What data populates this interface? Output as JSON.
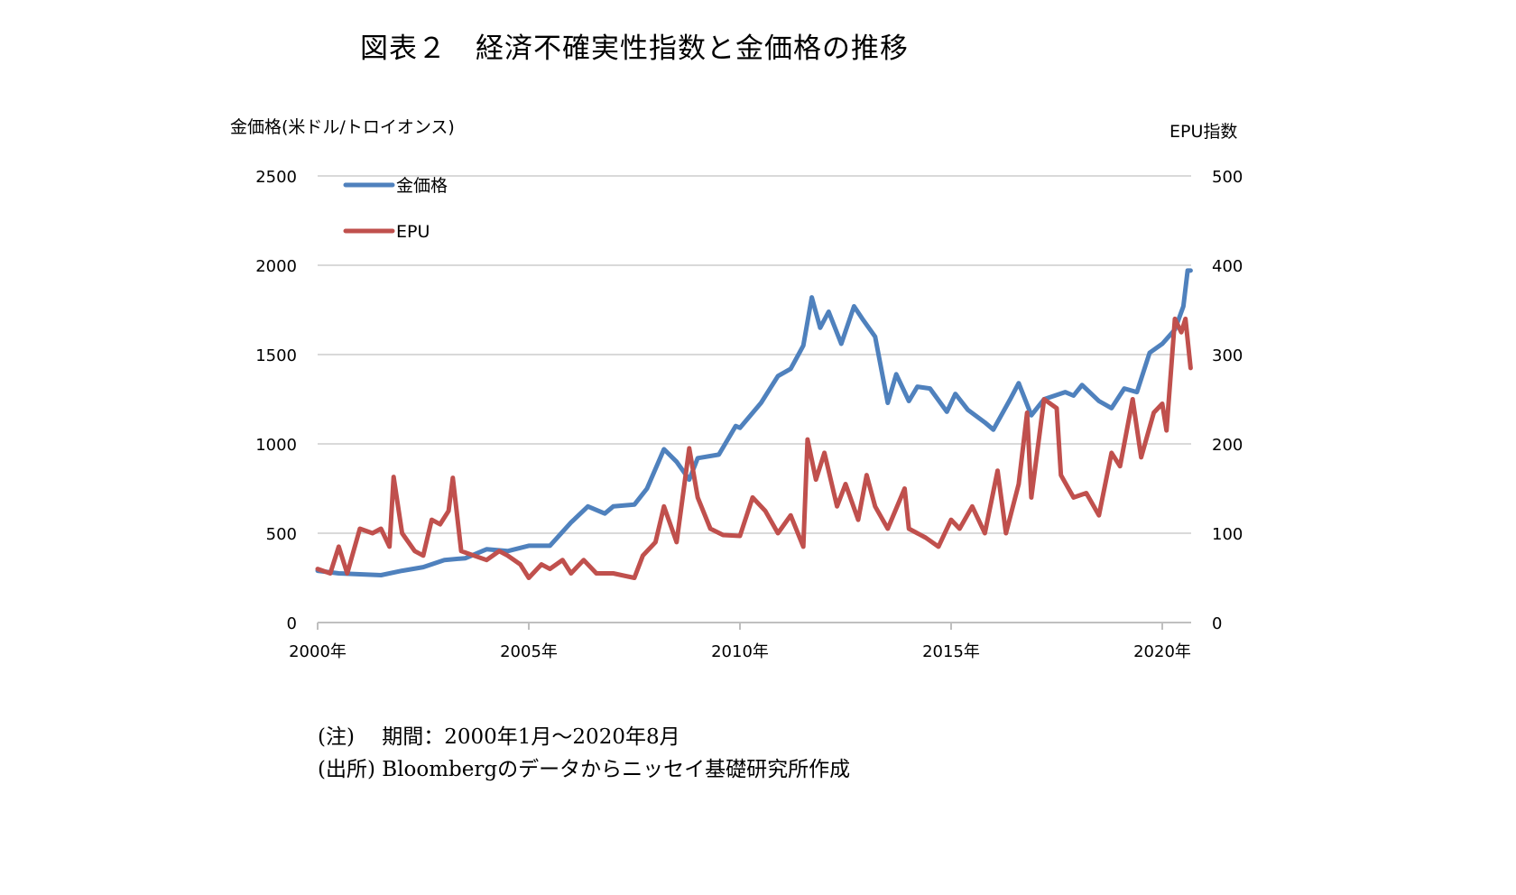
{
  "title": "図表２　経済不確実性指数と金価格の推移",
  "notes": {
    "period": "(注)　 期間：2000年1月～2020年8月",
    "source": "(出所) Bloombergのデータからニッセイ基礎研究所作成"
  },
  "chart_data": {
    "type": "line",
    "title": "図表２　経済不確実性指数と金価格の推移",
    "ylabel_left": "金価格(米ドル/トロイオンス)",
    "ylabel_right": "EPU指数",
    "ylim_left": [
      0,
      2500
    ],
    "ylim_right": [
      0,
      500
    ],
    "yticks_left": [
      "0",
      "500",
      "1000",
      "1500",
      "2000",
      "2500"
    ],
    "yticks_right": [
      "0",
      "100",
      "200",
      "300",
      "400",
      "500"
    ],
    "xlim": [
      2000,
      2020.67
    ],
    "xticks": [
      "2000年",
      "2005年",
      "2010年",
      "2015年",
      "2020年"
    ],
    "grid": true,
    "legend_position": "top-left",
    "series": [
      {
        "name": "金価格",
        "axis": "left",
        "color": "#4f81bd",
        "x": [
          2000.0,
          2000.5,
          2001,
          2001.5,
          2002,
          2002.5,
          2003,
          2003.5,
          2004,
          2004.5,
          2005,
          2005.5,
          2006,
          2006.4,
          2006.8,
          2007,
          2007.5,
          2007.8,
          2008.2,
          2008.5,
          2008.8,
          2009,
          2009.5,
          2009.9,
          2010,
          2010.5,
          2010.9,
          2011.2,
          2011.5,
          2011.7,
          2011.9,
          2012.1,
          2012.4,
          2012.7,
          2012.9,
          2013.2,
          2013.5,
          2013.7,
          2014,
          2014.2,
          2014.5,
          2014.9,
          2015.1,
          2015.4,
          2015.8,
          2016,
          2016.4,
          2016.6,
          2016.9,
          2017.2,
          2017.7,
          2017.9,
          2018.1,
          2018.5,
          2018.8,
          2019.1,
          2019.4,
          2019.7,
          2020,
          2020.3,
          2020.5,
          2020.6,
          2020.67
        ],
        "values": [
          290,
          275,
          270,
          265,
          290,
          310,
          350,
          360,
          410,
          400,
          430,
          430,
          560,
          650,
          610,
          650,
          660,
          750,
          970,
          900,
          800,
          920,
          940,
          1100,
          1090,
          1230,
          1380,
          1420,
          1550,
          1820,
          1650,
          1740,
          1560,
          1770,
          1700,
          1600,
          1230,
          1390,
          1240,
          1320,
          1310,
          1180,
          1280,
          1190,
          1120,
          1080,
          1250,
          1340,
          1160,
          1250,
          1290,
          1270,
          1330,
          1240,
          1200,
          1310,
          1290,
          1510,
          1560,
          1640,
          1770,
          1970,
          1970
        ]
      },
      {
        "name": "EPU",
        "axis": "right",
        "color": "#c0504d",
        "x": [
          2000.0,
          2000.3,
          2000.5,
          2000.7,
          2001,
          2001.3,
          2001.5,
          2001.7,
          2001.8,
          2002,
          2002.3,
          2002.5,
          2002.7,
          2002.9,
          2003.1,
          2003.2,
          2003.4,
          2003.7,
          2004,
          2004.3,
          2004.5,
          2004.8,
          2005,
          2005.3,
          2005.5,
          2005.8,
          2006,
          2006.3,
          2006.6,
          2007,
          2007.5,
          2007.7,
          2008,
          2008.2,
          2008.5,
          2008.8,
          2009,
          2009.3,
          2009.6,
          2010,
          2010.3,
          2010.6,
          2010.9,
          2011.2,
          2011.5,
          2011.6,
          2011.8,
          2012,
          2012.3,
          2012.5,
          2012.8,
          2013,
          2013.2,
          2013.5,
          2013.9,
          2014,
          2014.4,
          2014.7,
          2015,
          2015.2,
          2015.5,
          2015.8,
          2016.1,
          2016.3,
          2016.6,
          2016.8,
          2016.9,
          2017.2,
          2017.5,
          2017.6,
          2017.9,
          2018.2,
          2018.5,
          2018.8,
          2019,
          2019.3,
          2019.5,
          2019.8,
          2020,
          2020.1,
          2020.3,
          2020.45,
          2020.55,
          2020.67
        ],
        "values": [
          60,
          55,
          85,
          55,
          105,
          100,
          105,
          85,
          163,
          100,
          80,
          75,
          115,
          110,
          125,
          162,
          80,
          75,
          70,
          80,
          75,
          65,
          50,
          65,
          60,
          70,
          55,
          70,
          55,
          55,
          50,
          75,
          90,
          130,
          90,
          195,
          140,
          105,
          98,
          97,
          140,
          125,
          100,
          120,
          85,
          205,
          160,
          190,
          130,
          155,
          115,
          165,
          130,
          105,
          150,
          105,
          95,
          85,
          115,
          105,
          130,
          100,
          170,
          100,
          155,
          235,
          140,
          250,
          240,
          165,
          140,
          145,
          120,
          190,
          175,
          250,
          185,
          235,
          245,
          215,
          340,
          325,
          340,
          285
        ]
      }
    ]
  }
}
